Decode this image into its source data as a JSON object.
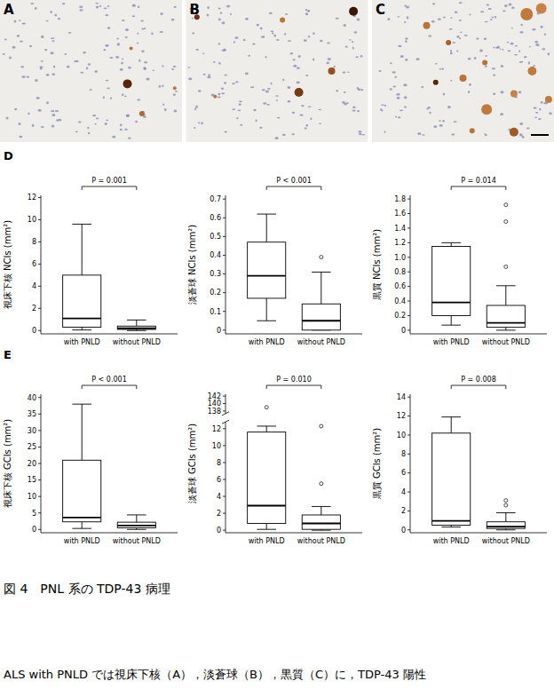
{
  "image_panels": [
    {
      "label": "A"
    },
    {
      "label": "B"
    },
    {
      "label": "C"
    }
  ],
  "row_labels": [
    "D",
    "E"
  ],
  "caption": {
    "title": "図 4　PNL 系の TDP-43 病理",
    "text": "ALS with PNLD では視床下核（A），淡蒼球（B），黒質（C）に，TDP-43 陽性"
  },
  "chart_data": [
    {
      "type": "box",
      "ylabel": "視床下核 NCIs (mm²)",
      "annotation": "P = 0.001",
      "categories": [
        "with PNLD",
        "without PNLD"
      ],
      "color": "#000000",
      "grid": false,
      "ylim": [
        -0.3,
        12.2
      ],
      "yticks": [
        0,
        2,
        4,
        6,
        8,
        10,
        12
      ],
      "boxes": [
        {
          "low": 0.05,
          "q1": 0.3,
          "median": 1.1,
          "q3": 5.0,
          "high": 9.6,
          "outliers": []
        },
        {
          "low": 0,
          "q1": 0.1,
          "median": 0.2,
          "q3": 0.4,
          "high": 0.95,
          "outliers": []
        }
      ]
    },
    {
      "type": "box",
      "ylabel": "淡蒼球 NCIs (mm²)",
      "annotation": "P < 0.001",
      "categories": [
        "with PNLD",
        "without PNLD"
      ],
      "color": "#000000",
      "grid": false,
      "ylim": [
        -0.02,
        0.72
      ],
      "yticks": [
        0,
        0.1,
        0.2,
        0.3,
        0.4,
        0.5,
        0.6,
        0.7
      ],
      "boxes": [
        {
          "low": 0.05,
          "q1": 0.17,
          "median": 0.29,
          "q3": 0.47,
          "high": 0.62,
          "outliers": []
        },
        {
          "low": 0,
          "q1": 0,
          "median": 0.05,
          "q3": 0.14,
          "high": 0.31,
          "outliers": [
            0.39
          ]
        }
      ]
    },
    {
      "type": "box",
      "ylabel": "黒質 NCIs (mm²)",
      "annotation": "P = 0.014",
      "categories": [
        "with PNLD",
        "without PNLD"
      ],
      "color": "#000000",
      "grid": false,
      "ylim": [
        -0.05,
        1.85
      ],
      "yticks": [
        0,
        0.2,
        0.4,
        0.6,
        0.8,
        {
          "value": 1,
          "label": "1.0"
        },
        1.2,
        1.4,
        1.6,
        1.8
      ],
      "boxes": [
        {
          "low": 0.07,
          "q1": 0.2,
          "median": 0.38,
          "q3": 1.15,
          "high": 1.2,
          "outliers": []
        },
        {
          "low": 0,
          "q1": 0.04,
          "median": 0.1,
          "q3": 0.34,
          "high": 0.61,
          "outliers": [
            0.87,
            1.49,
            1.72
          ]
        }
      ]
    },
    {
      "type": "box",
      "ylabel": "視床下核 GCIs (mm²)",
      "annotation": "P < 0.001",
      "categories": [
        "with PNLD",
        "without PNLD"
      ],
      "color": "#000000",
      "grid": false,
      "ylim": [
        -1,
        41
      ],
      "yticks": [
        0,
        5,
        10,
        15,
        20,
        25,
        30,
        35,
        40
      ],
      "boxes": [
        {
          "low": 0.3,
          "q1": 2.3,
          "median": 3.6,
          "q3": 21,
          "high": 38,
          "outliers": []
        },
        {
          "low": 0,
          "q1": 0.5,
          "median": 1.2,
          "q3": 2.2,
          "high": 4.4,
          "outliers": []
        }
      ]
    },
    {
      "type": "box",
      "ylabel": "淡蒼球 GCIs (mm²)",
      "annotation": "P = 0.010",
      "categories": [
        "with PNLD",
        "without PNLD"
      ],
      "color": "#000000",
      "grid": false,
      "ylim": [
        -0.3,
        142.5
      ],
      "y_break": [
        12.8,
        137.3
      ],
      "yticks": [
        0,
        2,
        4,
        6,
        8,
        10,
        12,
        138,
        140,
        142
      ],
      "boxes": [
        {
          "low": 0.1,
          "q1": 0.8,
          "median": 2.9,
          "q3": 11.6,
          "high": 12.3,
          "outliers": [
            139
          ]
        },
        {
          "low": 0,
          "q1": 0.1,
          "median": 0.8,
          "q3": 1.8,
          "high": 2.8,
          "outliers": [
            5.5,
            12.3
          ]
        }
      ]
    },
    {
      "type": "box",
      "ylabel": "黒質 GCIs (mm²)",
      "annotation": "P = 0.008",
      "categories": [
        "with PNLD",
        "without PNLD"
      ],
      "color": "#000000",
      "grid": false,
      "ylim": [
        -0.3,
        14.3
      ],
      "yticks": [
        0,
        2,
        4,
        6,
        8,
        10,
        12,
        14
      ],
      "boxes": [
        {
          "low": 0.3,
          "q1": 0.5,
          "median": 0.95,
          "q3": 10.2,
          "high": 11.9,
          "outliers": []
        },
        {
          "low": 0,
          "q1": 0.15,
          "median": 0.35,
          "q3": 0.85,
          "high": 1.8,
          "outliers": [
            2.6,
            3.1
          ]
        }
      ]
    }
  ]
}
